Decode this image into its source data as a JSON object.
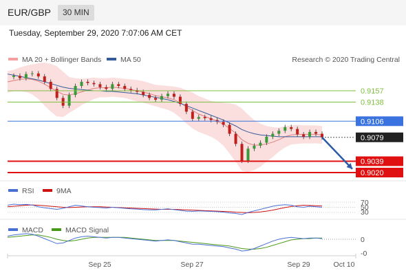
{
  "header": {
    "symbol": "EUR/GBP",
    "timeframe": "30 MIN",
    "datetime": "Tuesday, September 29, 2020 7:07:06 AM CET"
  },
  "legend": {
    "bb_label": "MA 20 + Bollinger Bands",
    "ma50_label": "MA 50",
    "credit": "Research © 2020 Trading Central"
  },
  "colors": {
    "green": "#7fbf3f",
    "blue": "#3a73e0",
    "red": "#e01010",
    "last": "#222222",
    "bb": "#f4a0a0",
    "ma50": "#335a99",
    "rsi": "#4a6fd4",
    "ma9": "#cc1111",
    "macd": "#4a6fd4",
    "signal": "#4a9a1a"
  },
  "levels": [
    {
      "label": "0.9157",
      "value": 0.9157,
      "kind": "resistance"
    },
    {
      "label": "0.9138",
      "value": 0.9138,
      "kind": "resistance"
    },
    {
      "label": "0.9106",
      "value": 0.9106,
      "kind": "pivot"
    },
    {
      "label": "0.9079",
      "value": 0.9079,
      "kind": "last"
    },
    {
      "label": "0.9039",
      "value": 0.9039,
      "kind": "support"
    },
    {
      "label": "0.9020",
      "value": 0.902,
      "kind": "support"
    }
  ],
  "rsi": {
    "label": "RSI",
    "ma_label": "9MA",
    "ticks": [
      "70",
      "50",
      "30"
    ]
  },
  "macd": {
    "label": "MACD",
    "signal_label": "MACD Signal",
    "ticks": [
      "0",
      "-0"
    ]
  },
  "xaxis": [
    "Sep 25",
    "Sep 27",
    "Sep 29",
    "Oct 10"
  ],
  "chart_data": {
    "type": "line",
    "price_range": [
      0.9015,
      0.918
    ],
    "price": [
      0.918,
      0.9182,
      0.9178,
      0.9185,
      0.9186,
      0.9181,
      0.9172,
      0.916,
      0.9145,
      0.9132,
      0.915,
      0.9165,
      0.9172,
      0.917,
      0.9168,
      0.9163,
      0.916,
      0.9168,
      0.9165,
      0.916,
      0.9158,
      0.9155,
      0.915,
      0.9145,
      0.9142,
      0.9148,
      0.9152,
      0.9147,
      0.9135,
      0.9122,
      0.911,
      0.9113,
      0.9111,
      0.9108,
      0.9105,
      0.91,
      0.9085,
      0.9068,
      0.904,
      0.906,
      0.9065,
      0.907,
      0.908,
      0.9085,
      0.909,
      0.9096,
      0.9093,
      0.9084,
      0.908,
      0.9088,
      0.9085,
      0.9079
    ],
    "ma20": [
      0.9172,
      0.9174,
      0.9176,
      0.9177,
      0.9176,
      0.9173,
      0.9168,
      0.9162,
      0.9156,
      0.9151,
      0.915,
      0.9152,
      0.9155,
      0.9158,
      0.9161,
      0.9162,
      0.9162,
      0.9163,
      0.9162,
      0.9161,
      0.9159,
      0.9157,
      0.9155,
      0.9152,
      0.9149,
      0.9147,
      0.9145,
      0.9142,
      0.9137,
      0.913,
      0.9124,
      0.9118,
      0.9114,
      0.911,
      0.9106,
      0.9101,
      0.9094,
      0.9086,
      0.9075,
      0.9069,
      0.9066,
      0.9066,
      0.9068,
      0.9071,
      0.9075,
      0.908,
      0.9083,
      0.9084,
      0.9084,
      0.9084,
      0.9084,
      0.9083
    ],
    "ma50": [
      0.9185,
      0.9183,
      0.9181,
      0.9179,
      0.9177,
      0.9175,
      0.9172,
      0.9169,
      0.9166,
      0.9163,
      0.9161,
      0.916,
      0.9159,
      0.9158,
      0.9157,
      0.9157,
      0.9156,
      0.9156,
      0.9155,
      0.9154,
      0.9153,
      0.9152,
      0.915,
      0.9148,
      0.9146,
      0.9144,
      0.9142,
      0.9139,
      0.9136,
      0.9132,
      0.9128,
      0.9124,
      0.912,
      0.9116,
      0.9112,
      0.9108,
      0.9103,
      0.9098,
      0.9092,
      0.9088,
      0.9085,
      0.9083,
      0.9082,
      0.9081,
      0.908,
      0.908,
      0.908,
      0.908,
      0.908,
      0.908,
      0.908,
      0.908
    ],
    "bb_width": [
      0.0018,
      0.0018,
      0.002,
      0.0022,
      0.0025,
      0.003,
      0.0036,
      0.004,
      0.0042,
      0.0038,
      0.003,
      0.0026,
      0.0022,
      0.002,
      0.0018,
      0.0016,
      0.0016,
      0.0016,
      0.0016,
      0.0016,
      0.0017,
      0.0018,
      0.0018,
      0.0018,
      0.0018,
      0.0019,
      0.002,
      0.0022,
      0.0025,
      0.0028,
      0.003,
      0.003,
      0.003,
      0.003,
      0.0032,
      0.0036,
      0.0042,
      0.0048,
      0.0052,
      0.0048,
      0.0042,
      0.0036,
      0.003,
      0.0025,
      0.002,
      0.0018,
      0.0016,
      0.0016,
      0.0015,
      0.0015,
      0.0015,
      0.0015
    ],
    "rsi_values": [
      58,
      62,
      60,
      61,
      59,
      52,
      48,
      45,
      42,
      46,
      52,
      58,
      55,
      52,
      50,
      49,
      47,
      50,
      48,
      46,
      44,
      43,
      41,
      40,
      40,
      42,
      44,
      41,
      38,
      35,
      34,
      36,
      35,
      34,
      33,
      31,
      28,
      26,
      22,
      30,
      36,
      42,
      48,
      54,
      58,
      60,
      58,
      52,
      50,
      54,
      52,
      50
    ],
    "rsi_ma": [
      52,
      54,
      56,
      58,
      59,
      58,
      56,
      54,
      52,
      50,
      49,
      50,
      51,
      52,
      52,
      52,
      51,
      50,
      49,
      48,
      47,
      46,
      45,
      44,
      43,
      42,
      42,
      42,
      41,
      40,
      39,
      38,
      37,
      36,
      35,
      34,
      33,
      31,
      30,
      29,
      30,
      32,
      35,
      39,
      44,
      49,
      53,
      56,
      58,
      57,
      56,
      55
    ],
    "macd_values": [
      0.5,
      0.7,
      0.8,
      0.9,
      0.8,
      0.5,
      0.1,
      -0.3,
      -0.7,
      -0.6,
      -0.2,
      0.2,
      0.4,
      0.5,
      0.4,
      0.3,
      0.2,
      0.3,
      0.3,
      0.2,
      0.1,
      0.0,
      -0.1,
      -0.2,
      -0.3,
      -0.2,
      -0.1,
      -0.2,
      -0.4,
      -0.6,
      -0.8,
      -0.8,
      -0.9,
      -1.0,
      -1.1,
      -1.2,
      -1.4,
      -1.6,
      -1.9,
      -1.8,
      -1.5,
      -1.1,
      -0.7,
      -0.3,
      0.0,
      0.2,
      0.3,
      0.2,
      0.1,
      0.2,
      0.2,
      0.1
    ],
    "macd_signal": [
      0.3,
      0.4,
      0.5,
      0.6,
      0.7,
      0.7,
      0.5,
      0.3,
      0.0,
      -0.2,
      -0.3,
      -0.2,
      0.0,
      0.2,
      0.3,
      0.3,
      0.3,
      0.3,
      0.3,
      0.3,
      0.2,
      0.1,
      0.0,
      -0.1,
      -0.2,
      -0.2,
      -0.2,
      -0.2,
      -0.3,
      -0.4,
      -0.5,
      -0.6,
      -0.7,
      -0.8,
      -0.9,
      -1.0,
      -1.1,
      -1.3,
      -1.5,
      -1.6,
      -1.6,
      -1.5,
      -1.3,
      -1.0,
      -0.7,
      -0.4,
      -0.1,
      0.0,
      0.1,
      0.1,
      0.2,
      0.2
    ],
    "projection": [
      0.9079,
      0.9026
    ]
  }
}
